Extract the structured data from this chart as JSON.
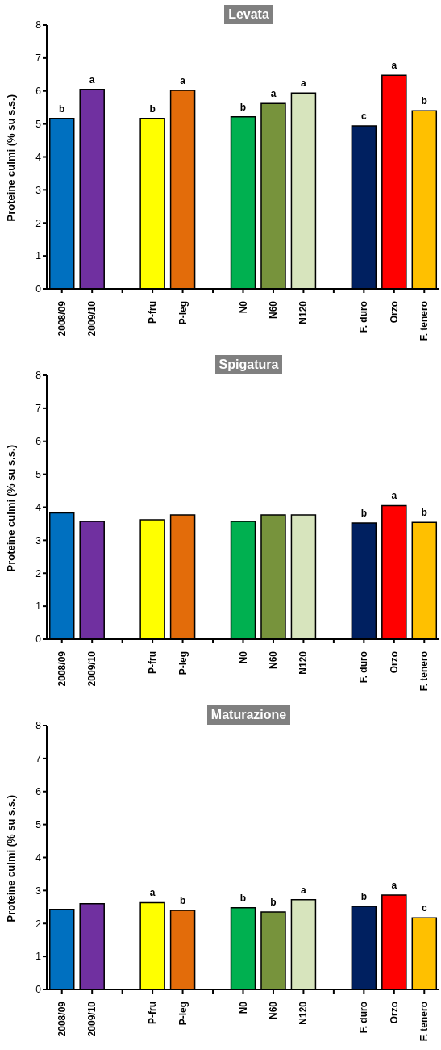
{
  "chart_data": [
    {
      "type": "bar",
      "title": "Levata",
      "ylabel": "Proteine culmi (% su s.s.)",
      "categories": [
        "2008/09",
        "2009/10",
        null,
        "P-fru",
        "P-leg",
        null,
        "N0",
        "N60",
        "N120",
        null,
        "F. duro",
        "Orzo",
        "F. tenero"
      ],
      "values": [
        5.17,
        6.05,
        null,
        5.17,
        6.02,
        null,
        5.22,
        5.62,
        5.94,
        null,
        4.94,
        6.48,
        5.4
      ],
      "colors": [
        "#0070c0",
        "#7030a0",
        null,
        "#ffff00",
        "#e36c0a",
        null,
        "#00b050",
        "#77933c",
        "#d7e4bd",
        null,
        "#002060",
        "#ff0000",
        "#ffc000"
      ],
      "value_labels": [
        "b",
        "a",
        null,
        "b",
        "a",
        null,
        "b",
        "a",
        "a",
        null,
        "c",
        "a",
        "b"
      ],
      "ylim": [
        0,
        8
      ],
      "yticks": [
        0,
        1,
        2,
        3,
        4,
        5,
        6,
        7,
        8
      ]
    },
    {
      "type": "bar",
      "title": "Spigatura",
      "ylabel": "Proteine culmi (% su s.s.)",
      "categories": [
        "2008/09",
        "2009/10",
        null,
        "P-fru",
        "P-leg",
        null,
        "N0",
        "N60",
        "N120",
        null,
        "F. duro",
        "Orzo",
        "F. tenero"
      ],
      "values": [
        3.83,
        3.57,
        null,
        3.62,
        3.77,
        null,
        3.57,
        3.77,
        3.77,
        null,
        3.52,
        4.05,
        3.54
      ],
      "colors": [
        "#0070c0",
        "#7030a0",
        null,
        "#ffff00",
        "#e36c0a",
        null,
        "#00b050",
        "#77933c",
        "#d7e4bd",
        null,
        "#002060",
        "#ff0000",
        "#ffc000"
      ],
      "value_labels": [
        null,
        null,
        null,
        null,
        null,
        null,
        null,
        null,
        null,
        null,
        "b",
        "a",
        "b"
      ],
      "ylim": [
        0,
        8
      ],
      "yticks": [
        0,
        1,
        2,
        3,
        4,
        5,
        6,
        7,
        8
      ]
    },
    {
      "type": "bar",
      "title": "Maturazione",
      "ylabel": "Proteine culmi (% su s.s.)",
      "categories": [
        "2008/09",
        "2009/10",
        null,
        "P-fru",
        "P-leg",
        null,
        "N0",
        "N60",
        "N120",
        null,
        "F. duro",
        "Orzo",
        "F. tenero"
      ],
      "values": [
        2.43,
        2.6,
        null,
        2.63,
        2.4,
        null,
        2.48,
        2.35,
        2.72,
        null,
        2.52,
        2.86,
        2.17
      ],
      "colors": [
        "#0070c0",
        "#7030a0",
        null,
        "#ffff00",
        "#e36c0a",
        null,
        "#00b050",
        "#77933c",
        "#d7e4bd",
        null,
        "#002060",
        "#ff0000",
        "#ffc000"
      ],
      "value_labels": [
        null,
        null,
        null,
        "a",
        "b",
        null,
        "b",
        "b",
        "a",
        null,
        "b",
        "a",
        "c"
      ],
      "ylim": [
        0,
        8
      ],
      "yticks": [
        0,
        1,
        2,
        3,
        4,
        5,
        6,
        7,
        8
      ]
    }
  ]
}
